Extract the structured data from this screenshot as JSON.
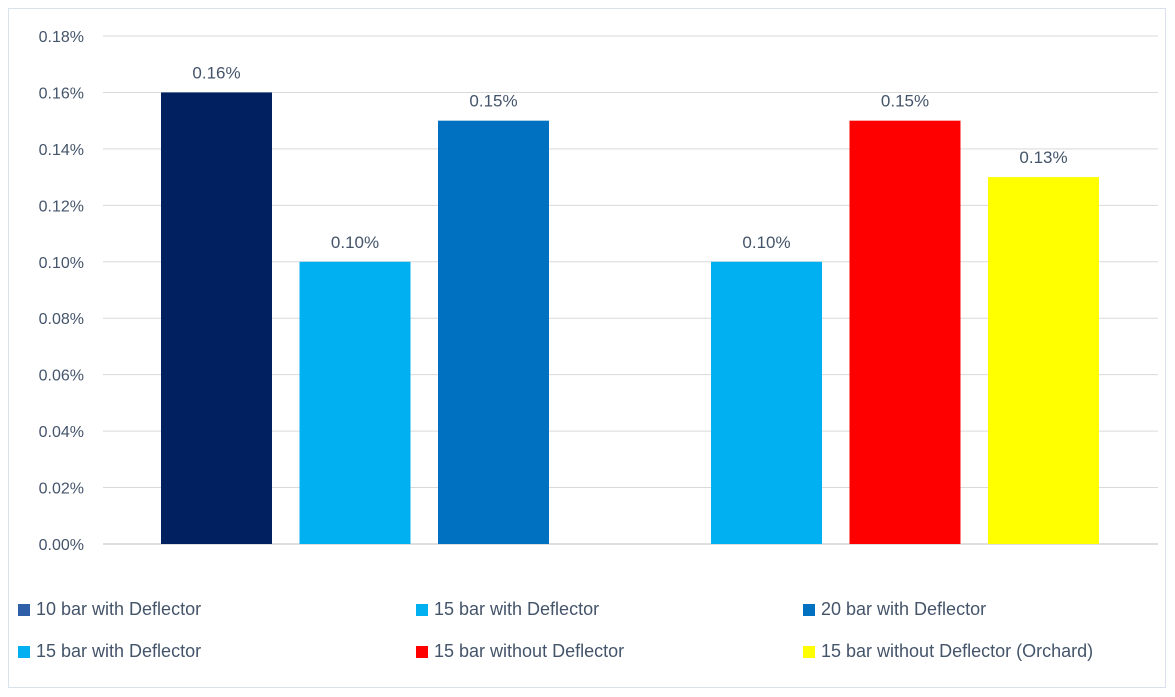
{
  "chart_data": {
    "type": "bar",
    "title": "",
    "xlabel": "",
    "ylabel": "",
    "ylim": [
      0,
      0.18
    ],
    "y_ticks": [
      "0.00%",
      "0.02%",
      "0.04%",
      "0.06%",
      "0.08%",
      "0.10%",
      "0.12%",
      "0.14%",
      "0.16%",
      "0.18%"
    ],
    "grid": true,
    "legend_position": "bottom",
    "groups": [
      {
        "bars": [
          {
            "series": "10 bar with Deflector",
            "value": 0.16,
            "label": "0.16%",
            "color": "#002060"
          },
          {
            "series": "15 bar with Deflector",
            "value": 0.1,
            "label": "0.10%",
            "color": "#00b0f0"
          },
          {
            "series": "20 bar with Deflector",
            "value": 0.15,
            "label": "0.15%",
            "color": "#0070c0"
          }
        ]
      },
      {
        "bars": [
          {
            "series": "15 bar with Deflector",
            "value": 0.1,
            "label": "0.10%",
            "color": "#00b0f0"
          },
          {
            "series": "15 bar without Deflector",
            "value": 0.15,
            "label": "0.15%",
            "color": "#ff0000"
          },
          {
            "series": "15 bar without Deflector (Orchard)",
            "value": 0.13,
            "label": "0.13%",
            "color": "#ffff00"
          }
        ]
      }
    ],
    "legend": [
      {
        "label": "10 bar with Deflector",
        "color": "#2e5fa8"
      },
      {
        "label": "15 bar with Deflector",
        "color": "#00b0f0"
      },
      {
        "label": "20 bar with Deflector",
        "color": "#0070c0"
      },
      {
        "label": "15 bar with Deflector",
        "color": "#00b0f0"
      },
      {
        "label": "15 bar without Deflector",
        "color": "#ff0000"
      },
      {
        "label": "15 bar without Deflector (Orchard)",
        "color": "#ffff00"
      }
    ]
  }
}
